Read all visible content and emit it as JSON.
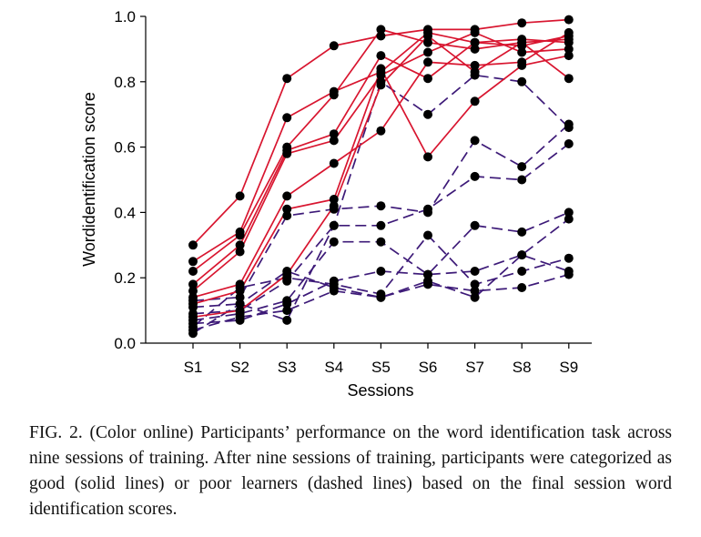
{
  "chart_data": {
    "type": "line",
    "x": [
      "S1",
      "S2",
      "S3",
      "S4",
      "S5",
      "S6",
      "S7",
      "S8",
      "S9"
    ],
    "xlabel": "Sessions",
    "ylabel": "Wordidentification score",
    "ylim": [
      0,
      1
    ],
    "yticks": [
      "0.0",
      "0.2",
      "0.4",
      "0.6",
      "0.8",
      "1.0"
    ],
    "grid": false,
    "legend": "none",
    "colors": {
      "good": "#d8152f",
      "poor": "#3d1a78",
      "marker": "#000000"
    },
    "series": [
      {
        "group": "good",
        "style": "solid",
        "values": [
          0.3,
          0.45,
          0.81,
          0.91,
          0.94,
          0.96,
          0.96,
          0.98,
          0.99
        ]
      },
      {
        "group": "good",
        "style": "solid",
        "values": [
          0.25,
          0.34,
          0.69,
          0.77,
          0.83,
          0.95,
          0.92,
          0.93,
          0.92
        ]
      },
      {
        "group": "good",
        "style": "solid",
        "values": [
          0.22,
          0.33,
          0.6,
          0.76,
          0.96,
          0.92,
          0.9,
          0.92,
          0.93
        ]
      },
      {
        "group": "good",
        "style": "solid",
        "values": [
          0.18,
          0.3,
          0.59,
          0.64,
          0.88,
          0.81,
          0.92,
          0.91,
          0.94
        ]
      },
      {
        "group": "good",
        "style": "solid",
        "values": [
          0.16,
          0.28,
          0.58,
          0.62,
          0.82,
          0.89,
          0.95,
          0.89,
          0.9
        ]
      },
      {
        "group": "good",
        "style": "solid",
        "values": [
          0.14,
          0.18,
          0.45,
          0.55,
          0.65,
          0.86,
          0.85,
          0.86,
          0.95
        ]
      },
      {
        "group": "good",
        "style": "solid",
        "values": [
          0.12,
          0.16,
          0.41,
          0.44,
          0.84,
          0.57,
          0.74,
          0.85,
          0.88
        ]
      },
      {
        "group": "good",
        "style": "solid",
        "values": [
          0.08,
          0.1,
          0.21,
          0.42,
          0.79,
          0.94,
          0.83,
          0.92,
          0.81
        ]
      },
      {
        "group": "poor",
        "style": "dashed",
        "values": [
          0.13,
          0.14,
          0.39,
          0.41,
          0.42,
          0.4,
          0.62,
          0.54,
          0.67
        ]
      },
      {
        "group": "poor",
        "style": "dashed",
        "values": [
          0.11,
          0.12,
          0.07,
          0.36,
          0.8,
          0.7,
          0.82,
          0.8,
          0.66
        ]
      },
      {
        "group": "poor",
        "style": "dashed",
        "values": [
          0.09,
          0.1,
          0.19,
          0.36,
          0.36,
          0.41,
          0.51,
          0.5,
          0.61
        ]
      },
      {
        "group": "poor",
        "style": "dashed",
        "values": [
          0.07,
          0.09,
          0.13,
          0.31,
          0.31,
          0.21,
          0.36,
          0.34,
          0.4
        ]
      },
      {
        "group": "poor",
        "style": "dashed",
        "values": [
          0.06,
          0.07,
          0.12,
          0.19,
          0.22,
          0.21,
          0.22,
          0.27,
          0.38
        ]
      },
      {
        "group": "poor",
        "style": "dashed",
        "values": [
          0.05,
          0.17,
          0.2,
          0.18,
          0.15,
          0.33,
          0.18,
          0.22,
          0.26
        ]
      },
      {
        "group": "poor",
        "style": "dashed",
        "values": [
          0.04,
          0.08,
          0.1,
          0.16,
          0.14,
          0.19,
          0.14,
          0.27,
          0.22
        ]
      },
      {
        "group": "poor",
        "style": "dashed",
        "values": [
          0.03,
          0.12,
          0.22,
          0.17,
          0.14,
          0.18,
          0.16,
          0.17,
          0.21
        ]
      }
    ]
  },
  "caption": "FIG. 2. (Color online) Participants’ performance on the word identification task across nine sessions of training. After nine sessions of training, participants were categorized as good (solid lines) or poor learners (dashed lines) based on the final session word identification scores."
}
